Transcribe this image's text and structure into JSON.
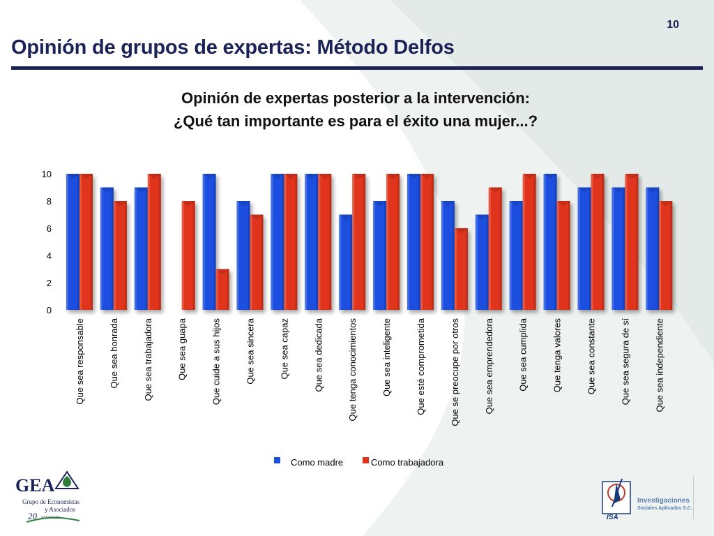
{
  "page_number": "10",
  "slide_title": "Opinión de grupos de expertas: Método Delfos",
  "colors": {
    "madre": "#1b4fe0",
    "trabajadora": "#e0341a",
    "title": "#1b2257"
  },
  "logos": {
    "gea": {
      "name": "GEA",
      "line1": "Grupo de Economistas",
      "line2": "y Asociados",
      "anniversary": "20",
      "anniversary_label": "Aniversario",
      "icon": "gea-leaf-icon"
    },
    "isa": {
      "line1": "Investigaciones",
      "line2": "Sociales Aplicadas S.C.",
      "mark": "ISA",
      "icon": "isa-compass-icon"
    }
  },
  "chart_data": {
    "type": "bar",
    "title": [
      "Opinión de expertas posterior a la intervención:",
      "¿Qué tan importante es para el éxito una mujer...?"
    ],
    "categories": [
      "Que sea responsable",
      "Que sea honrada",
      "Que sea trabajadora",
      "Que sea guapa",
      "Que cuide a sus hijos",
      "Que sea sincera",
      "Que sea capaz",
      "Que sea dedicada",
      "Que tenga conocimientos",
      "Que sea inteligente",
      "Que esté comprometida",
      "Que se preocupe por otros",
      "Que sea emprendedora",
      "Que sea cumplida",
      "Que tenga valores",
      "Que sea constante",
      "Que sea segura de sí",
      "Que sea independiente"
    ],
    "series": [
      {
        "name": "Como madre",
        "values": [
          10,
          9,
          9,
          0,
          10,
          8,
          10,
          10,
          7,
          8,
          10,
          8,
          7,
          8,
          10,
          9,
          9,
          9
        ]
      },
      {
        "name": "Como trabajadora",
        "values": [
          10,
          8,
          10,
          8,
          3,
          7,
          10,
          10,
          10,
          10,
          10,
          6,
          9,
          10,
          8,
          10,
          10,
          8
        ]
      }
    ],
    "ylim": [
      0,
      10
    ],
    "yticks": [
      0,
      2,
      4,
      6,
      8,
      10
    ],
    "legend_position": "bottom",
    "grid": false
  }
}
